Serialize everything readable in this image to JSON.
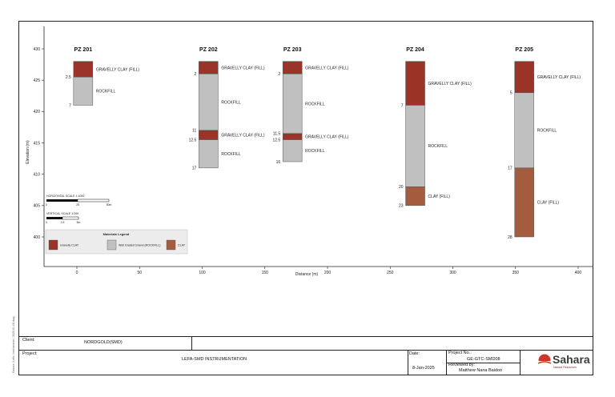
{
  "chart_data": {
    "type": "borehole-logs",
    "ylabel": "Elevation (m)",
    "xlabel": "Distance (m)",
    "xlim": [
      -25,
      400
    ],
    "ylim": [
      396,
      432
    ],
    "x_ticks": [
      "0",
      "50",
      "100",
      "150",
      "200",
      "250",
      "300",
      "350",
      "400"
    ],
    "y_ticks": [
      "430",
      "425",
      "420",
      "415",
      "410",
      "405",
      "400"
    ],
    "colors": {
      "Gravelly CLAY": "#9a3328",
      "Well Graded Gravel (ROCKFILL)": "#c0c0c0",
      "CLAY": "#a45c3e"
    },
    "boreholes": [
      {
        "name": "PZ 201",
        "x": 5,
        "top": 428,
        "layers": [
          {
            "from": 0,
            "to": 2.5,
            "material": "Gravelly CLAY",
            "label": "GRAVELLY CLAY (FILL)"
          },
          {
            "from": 2.5,
            "to": 7,
            "material": "Well Graded Gravel (ROCKFILL)",
            "label": "ROCKFILL"
          }
        ],
        "depth_labels": [
          "2.5",
          "7"
        ]
      },
      {
        "name": "PZ 202",
        "x": 105,
        "top": 428,
        "layers": [
          {
            "from": 0,
            "to": 2,
            "material": "Gravelly CLAY",
            "label": "GRAVELLY CLAY (FILL)"
          },
          {
            "from": 2,
            "to": 11,
            "material": "Well Graded Gravel (ROCKFILL)",
            "label": "ROCKFILL"
          },
          {
            "from": 11,
            "to": 12.5,
            "material": "Gravelly CLAY",
            "label": "GRAVELLY CLAY (FILL)"
          },
          {
            "from": 12.5,
            "to": 17,
            "material": "Well Graded Gravel (ROCKFILL)",
            "label": "ROCKFILL"
          }
        ],
        "depth_labels": [
          "2",
          "11",
          "12.5",
          "17"
        ]
      },
      {
        "name": "PZ 203",
        "x": 172,
        "top": 428,
        "layers": [
          {
            "from": 0,
            "to": 2,
            "material": "Gravelly CLAY",
            "label": "GRAVELLY CLAY (FILL)"
          },
          {
            "from": 2,
            "to": 11.5,
            "material": "Well Graded Gravel (ROCKFILL)",
            "label": "ROCKFILL"
          },
          {
            "from": 11.5,
            "to": 12.5,
            "material": "Gravelly CLAY",
            "label": "GRAVELLY CLAY (FILL)"
          },
          {
            "from": 12.5,
            "to": 16,
            "material": "Well Graded Gravel (ROCKFILL)",
            "label": "ROCKFILL"
          }
        ],
        "depth_labels": [
          "2",
          "11.5",
          "12.5",
          "16"
        ]
      },
      {
        "name": "PZ 204",
        "x": 270,
        "top": 428,
        "layers": [
          {
            "from": 0,
            "to": 7,
            "material": "Gravelly CLAY",
            "label": "GRAVELLY CLAY (FILL)"
          },
          {
            "from": 7,
            "to": 20,
            "material": "Well Graded Gravel (ROCKFILL)",
            "label": "ROCKFILL"
          },
          {
            "from": 20,
            "to": 23,
            "material": "CLAY",
            "label": "CLAY (FILL)"
          }
        ],
        "depth_labels": [
          "7",
          "20",
          "23"
        ]
      },
      {
        "name": "PZ 205",
        "x": 357,
        "top": 428,
        "layers": [
          {
            "from": 0,
            "to": 5,
            "material": "Gravelly CLAY",
            "label": "GRAVELLY CLAY (FILL)"
          },
          {
            "from": 5,
            "to": 17,
            "material": "Well Graded Gravel (ROCKFILL)",
            "label": "ROCKFILL"
          },
          {
            "from": 17,
            "to": 28,
            "material": "CLAY",
            "label": "CLAY (FILL)"
          }
        ],
        "depth_labels": [
          "5",
          "17",
          "28"
        ]
      }
    ],
    "horizontal_scale": {
      "title": "HORIZONTAL SCALE 1:1000",
      "ticks": [
        "0",
        "25",
        "50m"
      ]
    },
    "vertical_scale": {
      "title": "VERTICAL SCALE 1:200",
      "ticks": [
        "0",
        "2.5",
        "5m"
      ]
    },
    "legend": {
      "title": "Materials Legend",
      "items": [
        {
          "label": "Gravelly CLAY",
          "color": "#9a3328"
        },
        {
          "label": "Well Graded Gravel (ROCKFILL)",
          "color": "#c0c0c0"
        },
        {
          "label": "CLAY",
          "color": "#a45c3e"
        }
      ]
    }
  },
  "title_block": {
    "client_label": "Client:",
    "client_value": "NORDGOLD(SMD)",
    "project_label": "Project:",
    "project_value": "LEFA-SMD INSTRUMENTATION",
    "date_label": "Date:",
    "date_value": "8-Jan-2025",
    "project_no_label": "Project No.:",
    "project_no_value": "GE-GTC-SMD08",
    "reviewed_label": "Reviewed by:",
    "reviewed_value": "Matthew Nana Baidoo",
    "logo_name": "Sahara",
    "logo_sub": "Natural Resources"
  },
  "side_note": "Sahara / Lefa / Instruments / 2025-01-08.dwg"
}
